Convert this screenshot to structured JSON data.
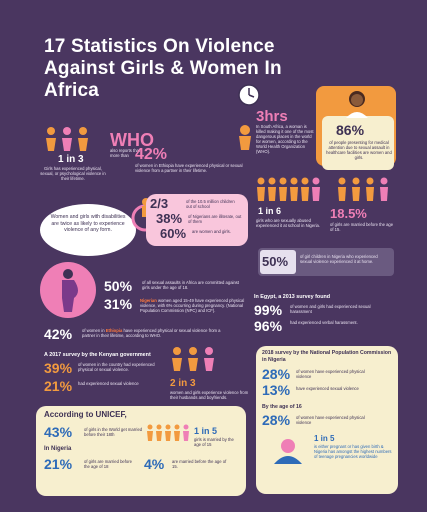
{
  "title": "17 Statistics On Violence Against Girls & Women In Africa",
  "colors": {
    "background": "#4a3660",
    "pink": "#ef7fb6",
    "orange": "#f29a3f",
    "cream": "#f7efcf",
    "blue": "#2878c8"
  },
  "stat_1in3": {
    "value": "1 in 3",
    "text": "Girls has experienced physical, sexual, or psychological violence in their lifetime."
  },
  "who": {
    "label": "WHO",
    "prefix": "also reports that more than",
    "value": "42%",
    "text": "of women in Ethiopia have experienced physical or sexual violence from a partner in their lifetime."
  },
  "clock": {
    "value": "3hrs",
    "text": "In South Africa, a woman is killed making it one of the most dangerous places in the world for women, according to the World Health Organization (WHO)."
  },
  "doctor": {
    "value": "86%",
    "text": "of people presenting for medical attention due to sexual assault in healthcare facilities are women and girls."
  },
  "disability": {
    "text": "Women and girls with disabilities are twice as likely to experience violence of any form."
  },
  "nigeria_schools": {
    "a_value": "2/3",
    "a_text": "of the 10.5 million children out of school",
    "b_value": "38%",
    "b_text": "of Nigerians are illiterate, out of them",
    "c_value": "60%",
    "c_text": "are women and girls."
  },
  "stat_1in6": {
    "value": "1 in 6",
    "text": "girls who are sexually abused experienced it at school in Nigeria."
  },
  "stat_185": {
    "value": "18.5%",
    "text": "of girls are married before the age of 15."
  },
  "stat_50_nigeria": {
    "value": "50%",
    "text": "of girl children in Nigeria who experienced sexual violence experienced it at home."
  },
  "stat_50_assaults": {
    "value": "50%",
    "text": "of all sexual assaults in Africa are committed against girls under the age of 18."
  },
  "stat_31": {
    "value": "31%",
    "country": "Nigerian",
    "text": "women aged 15-49 have experienced physical violence, with 6% occurring during pregnancy. (National Population Commission (NPC) and ICF)."
  },
  "stat_42_ethiopia": {
    "value": "42%",
    "prefix": "of women in",
    "country": "Ethiopia",
    "text": "have experienced physical or sexual violence from a partner in their lifetime, according to WHO."
  },
  "egypt": {
    "heading": "In Egypt, a 2013 survey found",
    "a_value": "99%",
    "a_text": "of women and girls had experienced sexual harassment",
    "b_value": "96%",
    "b_text": "had experienced verbal harassment."
  },
  "kenya": {
    "heading": "A 2017 survey by the Kenyan government",
    "a_value": "39%",
    "a_text": "of women in the country had experienced physical or sexual violence.",
    "b_value": "21%",
    "b_text": "had experienced sexual violence"
  },
  "stat_2in3": {
    "value": "2 in 3",
    "text": "women and girls experience violence from their husbands and boyfriends."
  },
  "npc": {
    "heading": "2018 survey by the National Population Commission in Nigeria",
    "a_value": "28%",
    "a_text": "of women have experienced physical violence",
    "b_value": "13%",
    "b_text": "have experienced sexual violence",
    "sub_heading": "By the age of 16",
    "c_value": "28%",
    "c_text": "of women have experienced physical violence",
    "d_value": "1 in 5",
    "d_text": "is either pregnant or has given birth & Nigeria has amongst the highest numbers of teenage pregnancies worldwide"
  },
  "unicef": {
    "heading": "According to UNICEF,",
    "a_value": "43%",
    "a_text": "of girls in the World get married before their 18th",
    "b_value": "1 in 5",
    "b_text": "girls is married by the age of 15",
    "sub_heading": "In Nigeria",
    "c_value": "21%",
    "c_text": "of girls are married before the age of 18",
    "d_value": "4%",
    "d_text": "are married before the age of 15."
  }
}
